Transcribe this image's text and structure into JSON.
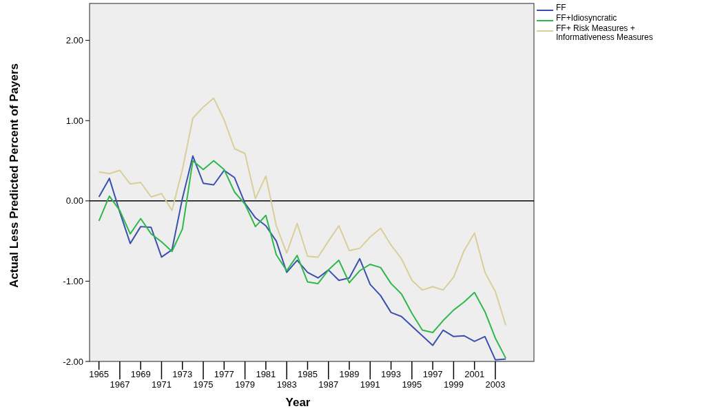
{
  "chart_data": {
    "type": "line",
    "xlabel": "Year",
    "ylabel": "Actual Less Predicted Percent of Payers",
    "categories": [
      "1965",
      null,
      "1967",
      null,
      "1969",
      null,
      "1971",
      null,
      "1973",
      null,
      "1975",
      null,
      "1977",
      null,
      "1979",
      null,
      "1981",
      null,
      "1983",
      null,
      "1985",
      null,
      "1987",
      null,
      "1989",
      null,
      "1991",
      null,
      "1993",
      null,
      "1995",
      null,
      "1997",
      null,
      "1999",
      null,
      "2001",
      null,
      "2003",
      null
    ],
    "ylim": [
      -2,
      2.46
    ],
    "yticks": [
      {
        "value": -2,
        "label": "-2.00"
      },
      {
        "value": -1,
        "label": "-1.00"
      },
      {
        "value": 0,
        "label": "0.00"
      },
      {
        "value": 1,
        "label": "1.00"
      },
      {
        "value": 2,
        "label": "2.00"
      }
    ],
    "ref_lines": [
      {
        "axis": "y",
        "value": 0,
        "color": "#000000"
      }
    ],
    "legend": "top right",
    "grid": false,
    "series": [
      {
        "name": "FF",
        "color": "#3b4fae",
        "values": [
          0.05,
          0.28,
          -0.14,
          -0.53,
          -0.32,
          -0.33,
          -0.7,
          -0.61,
          0.03,
          0.56,
          0.22,
          0.2,
          0.38,
          0.29,
          -0.03,
          -0.21,
          -0.31,
          -0.5,
          -0.89,
          -0.74,
          -0.89,
          -0.96,
          -0.86,
          -0.99,
          -0.96,
          -0.72,
          -1.04,
          -1.18,
          -1.39,
          -1.44,
          -1.56,
          -1.68,
          -1.8,
          -1.61,
          -1.69,
          -1.68,
          -1.75,
          -1.69,
          -1.98,
          -1.97
        ]
      },
      {
        "name": "FF+Idiosyncratic",
        "color": "#2db84a",
        "values": [
          -0.25,
          0.06,
          -0.12,
          -0.41,
          -0.22,
          -0.41,
          -0.51,
          -0.63,
          -0.35,
          0.5,
          0.39,
          0.5,
          0.39,
          0.11,
          -0.04,
          -0.32,
          -0.18,
          -0.67,
          -0.87,
          -0.68,
          -1.01,
          -1.03,
          -0.86,
          -0.74,
          -1.02,
          -0.87,
          -0.79,
          -0.83,
          -1.03,
          -1.16,
          -1.4,
          -1.61,
          -1.64,
          -1.49,
          -1.36,
          -1.26,
          -1.14,
          -1.38,
          -1.71,
          -1.96
        ]
      },
      {
        "name": "FF+ Risk Measures + Informativeness Measures",
        "color": "#d8cf98",
        "values": [
          0.36,
          0.34,
          0.38,
          0.21,
          0.23,
          0.05,
          0.09,
          -0.12,
          0.39,
          1.03,
          1.17,
          1.28,
          1.01,
          0.65,
          0.59,
          0.03,
          0.31,
          -0.31,
          -0.65,
          -0.28,
          -0.69,
          -0.7,
          -0.5,
          -0.31,
          -0.62,
          -0.59,
          -0.45,
          -0.34,
          -0.55,
          -0.72,
          -0.99,
          -1.11,
          -1.07,
          -1.11,
          -0.95,
          -0.62,
          -0.4,
          -0.89,
          -1.13,
          -1.55
        ]
      }
    ]
  }
}
